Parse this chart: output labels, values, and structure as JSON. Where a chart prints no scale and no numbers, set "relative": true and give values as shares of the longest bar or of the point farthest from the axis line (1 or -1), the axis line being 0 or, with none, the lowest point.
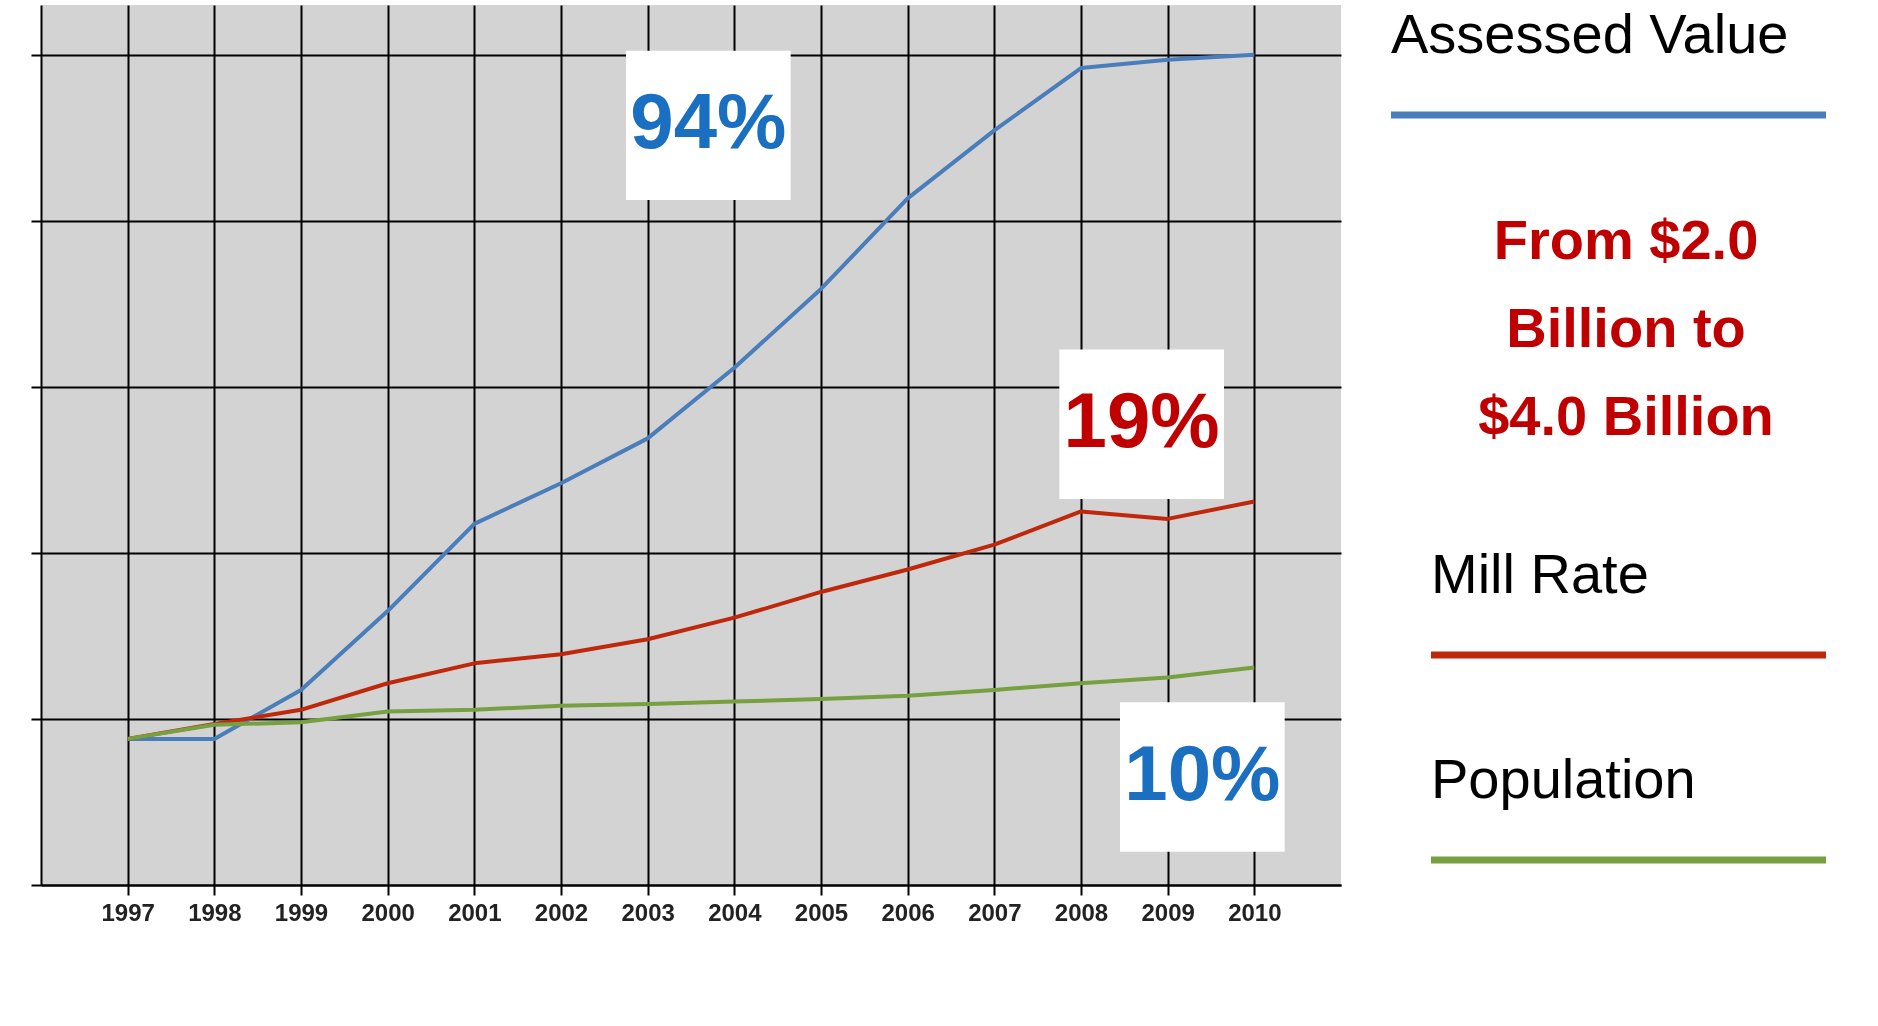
{
  "chart_data": {
    "type": "line",
    "relative": true,
    "x": [
      1997,
      1998,
      1999,
      2000,
      2001,
      2002,
      2003,
      2004,
      2005,
      2006,
      2007,
      2008,
      2009,
      2010
    ],
    "xlim": [
      1996,
      2011
    ],
    "xticks": [
      1997,
      1998,
      1999,
      2000,
      2001,
      2002,
      2003,
      2004,
      2005,
      2006,
      2007,
      2008,
      2009,
      2010
    ],
    "series": [
      {
        "name": "Assessed Value",
        "color": "#4a7ebb",
        "values": [
          0.176,
          0.176,
          0.235,
          0.33,
          0.435,
          0.484,
          0.538,
          0.623,
          0.718,
          0.827,
          0.909,
          0.984,
          0.994,
          1
        ]
      },
      {
        "name": "Mill Rate",
        "color": "#c0280c",
        "values": [
          0.176,
          0.194,
          0.211,
          0.243,
          0.267,
          0.278,
          0.296,
          0.322,
          0.353,
          0.38,
          0.41,
          0.45,
          0.441,
          0.462
        ]
      },
      {
        "name": "Population",
        "color": "#77a040",
        "values": [
          0.176,
          0.193,
          0.196,
          0.209,
          0.211,
          0.216,
          0.218,
          0.221,
          0.224,
          0.228,
          0.235,
          0.243,
          0.25,
          0.262
        ]
      }
    ],
    "annotations": [
      "94%",
      "From $2.0 Billion to $4.0 Billion",
      "19%",
      "10%"
    ],
    "grid": true,
    "legend": "right",
    "tick_labels": "x",
    "marker": "none",
    "line_style": "solid"
  }
}
